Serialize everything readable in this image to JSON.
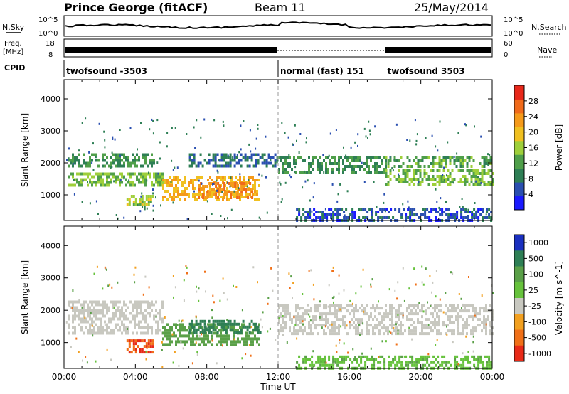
{
  "header": {
    "station": "Prince George (fitACF)",
    "beam": "Beam 11",
    "date": "25/May/2014"
  },
  "summary": {
    "nsky_label": "N.Sky",
    "nsky_ticks": [
      "10^5",
      "10^0"
    ],
    "nsearch_label": "N.Search",
    "nsearch_ticks": [
      "10^5",
      "10^0"
    ],
    "freq_label": [
      "Freq.",
      "[MHz]"
    ],
    "freq_ticks": [
      "18",
      "8"
    ],
    "nave_label": "Nave",
    "nave_ticks": [
      "60",
      "0"
    ],
    "cpid_label": "CPID",
    "cpid_segments": [
      {
        "name": "twofsound -3503",
        "start_hr": 0,
        "end_hr": 12
      },
      {
        "name": "normal (fast) 151",
        "start_hr": 12,
        "end_hr": 18
      },
      {
        "name": "twofsound 3503",
        "start_hr": 18,
        "end_hr": 24
      }
    ]
  },
  "colors": {
    "power_scale": [
      "#1a1aff",
      "#2a4fb0",
      "#2e7f55",
      "#4f9f4a",
      "#9ecf3a",
      "#f0c020",
      "#f59a1a",
      "#f06a1a",
      "#e8281a"
    ],
    "velocity_scale": [
      "#1a30c0",
      "#2e7f55",
      "#5aa048",
      "#66c23c",
      "#c8c8c0",
      "#f2a020",
      "#f07018",
      "#e82a18"
    ]
  },
  "chart_data": [
    {
      "type": "heatmap",
      "panel": "power",
      "ylabel": "Slant Range [km]",
      "yticks": [
        1000,
        2000,
        3000,
        4000
      ],
      "ylim": [
        200,
        4600
      ],
      "xlim": [
        0,
        24
      ],
      "colorbar_label": "Power [dB]",
      "colorbar_ticks": [
        "4",
        "8",
        "12",
        "16",
        "20",
        "24",
        "28"
      ],
      "colorbar_range": [
        0,
        32
      ],
      "bands": [
        {
          "t0": 0.2,
          "t1": 5.5,
          "r0": 1300,
          "r1": 1700,
          "level": 16
        },
        {
          "t0": 0.2,
          "t1": 5.0,
          "r0": 1900,
          "r1": 2300,
          "level": 12
        },
        {
          "t0": 3.5,
          "t1": 5.0,
          "r0": 700,
          "r1": 1000,
          "level": 18
        },
        {
          "t0": 5.5,
          "t1": 11.0,
          "r0": 800,
          "r1": 1600,
          "level": 24
        },
        {
          "t0": 7.5,
          "t1": 10.5,
          "r0": 900,
          "r1": 1400,
          "level": 28
        },
        {
          "t0": 7.0,
          "t1": 12.0,
          "r0": 1900,
          "r1": 2300,
          "level": 8
        },
        {
          "t0": 12.0,
          "t1": 18.0,
          "r0": 1700,
          "r1": 2200,
          "level": 12
        },
        {
          "t0": 18.0,
          "t1": 24.0,
          "r0": 1300,
          "r1": 1800,
          "level": 16
        },
        {
          "t0": 18.0,
          "t1": 24.0,
          "r0": 1900,
          "r1": 2200,
          "level": 14
        },
        {
          "t0": 13.0,
          "t1": 24.0,
          "r0": 200,
          "r1": 600,
          "level": 6
        }
      ]
    },
    {
      "type": "heatmap",
      "panel": "velocity",
      "ylabel": "Slant Range [km]",
      "yticks": [
        1000,
        2000,
        3000,
        4000
      ],
      "ylim": [
        200,
        4600
      ],
      "xlim": [
        0,
        24
      ],
      "xlabel": "Time UT",
      "xticks": [
        "00:00",
        "04:00",
        "08:00",
        "12:00",
        "16:00",
        "20:00",
        "00:00"
      ],
      "colorbar_label": "Velocity [m s^-1]",
      "colorbar_ticks": [
        "1000",
        "500",
        "100",
        "25",
        "-25",
        "-100",
        "-500",
        "-1000"
      ],
      "bands": [
        {
          "t0": 0.2,
          "t1": 5.5,
          "r0": 1300,
          "r1": 2300,
          "level": 0
        },
        {
          "t0": 3.5,
          "t1": 5.0,
          "r0": 700,
          "r1": 1100,
          "level": -300
        },
        {
          "t0": 5.5,
          "t1": 11.0,
          "r0": 900,
          "r1": 1600,
          "level": 150
        },
        {
          "t0": 7.0,
          "t1": 11.0,
          "r0": 1300,
          "r1": 1700,
          "level": 400
        },
        {
          "t0": 12.0,
          "t1": 24.0,
          "r0": 1300,
          "r1": 2200,
          "level": 0
        },
        {
          "t0": 13.0,
          "t1": 24.0,
          "r0": 200,
          "r1": 600,
          "level": 60
        }
      ]
    }
  ]
}
